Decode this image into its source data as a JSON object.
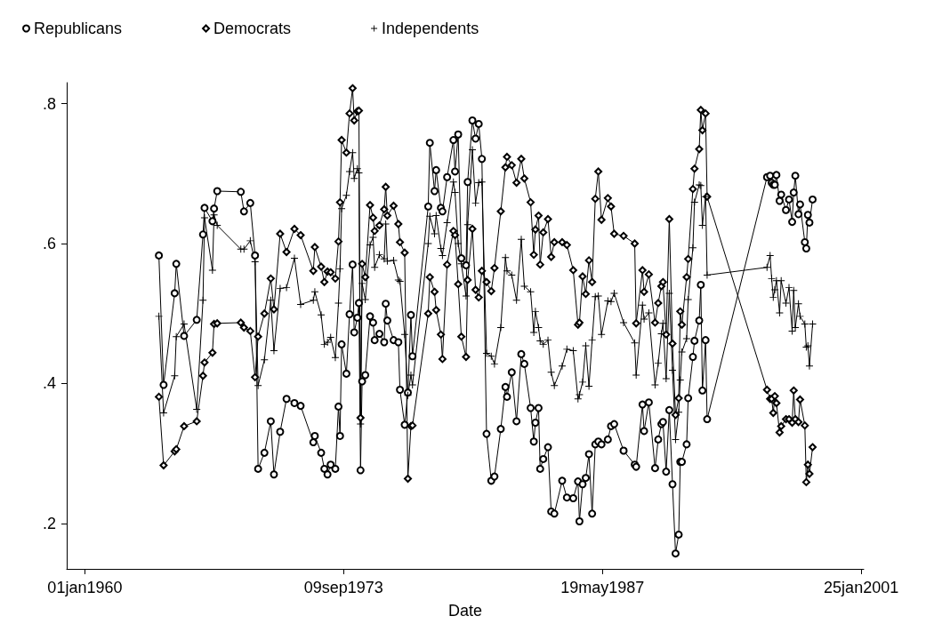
{
  "chart_data": {
    "type": "line",
    "xlabel": "Date",
    "legend": "top left",
    "grid": false,
    "line_style": "solid",
    "xlim": [
      "1959-01-15",
      "2001-03-15"
    ],
    "xticks": [
      {
        "value": "1960-01-01",
        "label": "01jan1960"
      },
      {
        "value": "1973-09-09",
        "label": "09sep1973"
      },
      {
        "value": "1987-05-19",
        "label": "19may1987"
      },
      {
        "value": "2001-01-25",
        "label": "25jan2001"
      }
    ],
    "ylim": [
      0.135,
      0.83
    ],
    "yticks": [
      {
        "value": 0.2,
        "label": ".2"
      },
      {
        "value": 0.4,
        "label": ".4"
      },
      {
        "value": 0.6,
        "label": ".6"
      },
      {
        "value": 0.8,
        "label": ".8"
      }
    ],
    "x": [
      "1963-12",
      "1964-03",
      "1964-10",
      "1964-11",
      "1965-04",
      "1965-12",
      "1966-04",
      "1966-05",
      "1966-10",
      "1966-11",
      "1967-01",
      "1968-04",
      "1968-06",
      "1968-10",
      "1969-01",
      "1969-03",
      "1969-07",
      "1969-11",
      "1970-01",
      "1970-05",
      "1970-09",
      "1971-02",
      "1971-06",
      "1972-02",
      "1972-03",
      "1972-07",
      "1972-09",
      "1972-11",
      "1973-01",
      "1973-04",
      "1973-06",
      "1973-07",
      "1973-08",
      "1973-11",
      "1974-01",
      "1974-03",
      "1974-04",
      "1974-06",
      "1974-07",
      "1974-08",
      "1974-09",
      "1974-11",
      "1975-02",
      "1975-04",
      "1975-05",
      "1975-08",
      "1975-11",
      "1975-12",
      "1976-01",
      "1976-05",
      "1976-08",
      "1976-09",
      "1976-12",
      "1977-02",
      "1977-04",
      "1977-05",
      "1978-03",
      "1978-04",
      "1978-07",
      "1978-08",
      "1978-11",
      "1978-12",
      "1979-03",
      "1979-07",
      "1979-08",
      "1979-10",
      "1979-12",
      "1980-03",
      "1980-04",
      "1980-07",
      "1980-09",
      "1980-11",
      "1981-01",
      "1981-04",
      "1981-07",
      "1981-09",
      "1982-01",
      "1982-04",
      "1982-05",
      "1982-08",
      "1982-11",
      "1983-02",
      "1983-04",
      "1983-08",
      "1983-10",
      "1983-11",
      "1984-01",
      "1984-02",
      "1984-04",
      "1984-07",
      "1984-09",
      "1984-11",
      "1985-04",
      "1985-07",
      "1985-11",
      "1986-02",
      "1986-03",
      "1986-05",
      "1986-07",
      "1986-09",
      "1986-11",
      "1987-01",
      "1987-03",
      "1987-05",
      "1987-09",
      "1987-11",
      "1988-01",
      "1988-07",
      "1989-02",
      "1989-03",
      "1989-07",
      "1989-08",
      "1989-11",
      "1990-03",
      "1990-05",
      "1990-07",
      "1990-08",
      "1990-10",
      "1990-12",
      "1991-02",
      "1991-04",
      "1991-06",
      "1991-07",
      "1991-08",
      "1991-11",
      "1991-12",
      "1992-03",
      "1992-04",
      "1992-07",
      "1992-08",
      "1992-09",
      "1992-11",
      "1992-12",
      "1996-02",
      "1996-04",
      "1996-05",
      "1996-06",
      "1996-07",
      "1996-08",
      "1996-10",
      "1996-11",
      "1997-02",
      "1997-04",
      "1997-06",
      "1997-07",
      "1997-08",
      "1997-10",
      "1997-11",
      "1998-02",
      "1998-03",
      "1998-04",
      "1998-05",
      "1998-07"
    ],
    "series": [
      {
        "name": "Republicans",
        "color": "#000000",
        "marker": "circle",
        "values": [
          0.583,
          0.398,
          0.529,
          0.571,
          0.468,
          0.491,
          0.613,
          0.651,
          0.632,
          0.65,
          0.675,
          0.674,
          0.646,
          0.658,
          0.583,
          0.278,
          0.301,
          0.346,
          0.27,
          0.331,
          0.378,
          0.372,
          0.368,
          0.316,
          0.325,
          0.301,
          0.278,
          0.27,
          0.284,
          0.278,
          0.367,
          0.325,
          0.456,
          0.414,
          0.499,
          0.57,
          0.473,
          0.494,
          0.515,
          0.276,
          0.403,
          0.412,
          0.496,
          0.487,
          0.462,
          0.471,
          0.459,
          0.514,
          0.49,
          0.462,
          0.459,
          0.391,
          0.341,
          0.387,
          0.498,
          0.439,
          0.653,
          0.744,
          0.675,
          0.705,
          0.651,
          0.646,
          0.695,
          0.748,
          0.703,
          0.756,
          0.579,
          0.569,
          0.688,
          0.776,
          0.75,
          0.771,
          0.721,
          0.328,
          0.261,
          0.267,
          0.335,
          0.395,
          0.381,
          0.416,
          0.346,
          0.442,
          0.428,
          0.365,
          0.317,
          0.344,
          0.365,
          0.278,
          0.292,
          0.309,
          0.217,
          0.214,
          0.261,
          0.237,
          0.236,
          0.26,
          0.203,
          0.256,
          0.265,
          0.299,
          0.214,
          0.313,
          0.317,
          0.313,
          0.32,
          0.339,
          0.342,
          0.304,
          0.284,
          0.281,
          0.37,
          0.332,
          0.373,
          0.279,
          0.32,
          0.342,
          0.345,
          0.274,
          0.362,
          0.256,
          0.157,
          0.184,
          0.288,
          0.288,
          0.313,
          0.379,
          0.438,
          0.461,
          0.49,
          0.541,
          0.39,
          0.462,
          0.349,
          0.695,
          0.697,
          0.687,
          0.684,
          0.684,
          0.698,
          0.661,
          0.67,
          0.648,
          0.663,
          0.631,
          0.673,
          0.697,
          0.642,
          0.656,
          0.602,
          0.593,
          0.641,
          0.63,
          0.663
        ]
      },
      {
        "name": "Democrats",
        "color": "#000000",
        "marker": "diamond",
        "values": [
          0.381,
          0.283,
          0.303,
          0.306,
          0.339,
          0.346,
          0.411,
          0.43,
          0.444,
          0.485,
          0.486,
          0.487,
          0.48,
          0.475,
          0.409,
          0.467,
          0.5,
          0.55,
          0.506,
          0.614,
          0.588,
          0.621,
          0.612,
          0.561,
          0.595,
          0.567,
          0.545,
          0.56,
          0.559,
          0.55,
          0.603,
          0.659,
          0.748,
          0.73,
          0.786,
          0.822,
          0.776,
          0.789,
          0.79,
          0.351,
          0.571,
          0.552,
          0.655,
          0.637,
          0.618,
          0.626,
          0.649,
          0.681,
          0.64,
          0.654,
          0.628,
          0.602,
          0.587,
          0.264,
          0.339,
          0.34,
          0.5,
          0.552,
          0.531,
          0.505,
          0.47,
          0.435,
          0.57,
          0.618,
          0.612,
          0.542,
          0.467,
          0.438,
          0.548,
          0.621,
          0.534,
          0.523,
          0.561,
          0.545,
          0.532,
          0.565,
          0.646,
          0.709,
          0.724,
          0.712,
          0.687,
          0.721,
          0.693,
          0.659,
          0.584,
          0.62,
          0.64,
          0.57,
          0.616,
          0.635,
          0.581,
          0.602,
          0.602,
          0.598,
          0.562,
          0.484,
          0.487,
          0.553,
          0.528,
          0.576,
          0.545,
          0.664,
          0.703,
          0.634,
          0.665,
          0.653,
          0.614,
          0.611,
          0.6,
          0.486,
          0.562,
          0.531,
          0.556,
          0.487,
          0.515,
          0.539,
          0.545,
          0.47,
          0.635,
          0.457,
          0.355,
          0.379,
          0.503,
          0.484,
          0.552,
          0.578,
          0.678,
          0.707,
          0.735,
          0.791,
          0.762,
          0.786,
          0.667,
          0.391,
          0.378,
          0.378,
          0.358,
          0.382,
          0.372,
          0.33,
          0.339,
          0.349,
          0.349,
          0.344,
          0.39,
          0.349,
          0.345,
          0.377,
          0.34,
          0.259,
          0.284,
          0.271,
          0.309
        ]
      },
      {
        "name": "Independents",
        "color": "#000000",
        "marker": "cross",
        "values": [
          0.496,
          0.358,
          0.411,
          0.467,
          0.485,
          0.363,
          0.519,
          0.637,
          0.562,
          0.641,
          0.626,
          0.592,
          0.592,
          0.604,
          0.574,
          0.397,
          0.434,
          0.519,
          0.447,
          0.536,
          0.537,
          0.579,
          0.513,
          0.519,
          0.531,
          0.498,
          0.456,
          0.459,
          0.466,
          0.437,
          0.515,
          0.564,
          0.65,
          0.669,
          0.703,
          0.73,
          0.693,
          0.707,
          0.701,
          0.342,
          0.543,
          0.52,
          0.598,
          0.609,
          0.566,
          0.584,
          0.578,
          0.628,
          0.575,
          0.576,
          0.548,
          0.546,
          0.47,
          0.383,
          0.412,
          0.398,
          0.6,
          0.639,
          0.614,
          0.64,
          0.593,
          0.583,
          0.63,
          0.688,
          0.673,
          0.6,
          0.571,
          0.525,
          0.627,
          0.734,
          0.658,
          0.687,
          0.688,
          0.443,
          0.439,
          0.428,
          0.48,
          0.58,
          0.561,
          0.555,
          0.519,
          0.606,
          0.539,
          0.531,
          0.473,
          0.503,
          0.48,
          0.461,
          0.456,
          0.462,
          0.416,
          0.397,
          0.425,
          0.449,
          0.447,
          0.378,
          0.384,
          0.402,
          0.454,
          0.396,
          0.462,
          0.524,
          0.525,
          0.47,
          0.518,
          0.517,
          0.529,
          0.487,
          0.458,
          0.412,
          0.512,
          0.492,
          0.501,
          0.398,
          0.429,
          0.471,
          0.486,
          0.407,
          0.529,
          0.419,
          0.32,
          0.359,
          0.405,
          0.445,
          0.464,
          0.52,
          0.594,
          0.659,
          0.684,
          0.683,
          0.626,
          0.667,
          0.555,
          0.566,
          0.583,
          0.55,
          0.523,
          0.534,
          0.547,
          0.501,
          0.547,
          0.515,
          0.537,
          0.475,
          0.533,
          0.48,
          0.514,
          0.496,
          0.485,
          0.452,
          0.454,
          0.425,
          0.485
        ]
      }
    ]
  }
}
